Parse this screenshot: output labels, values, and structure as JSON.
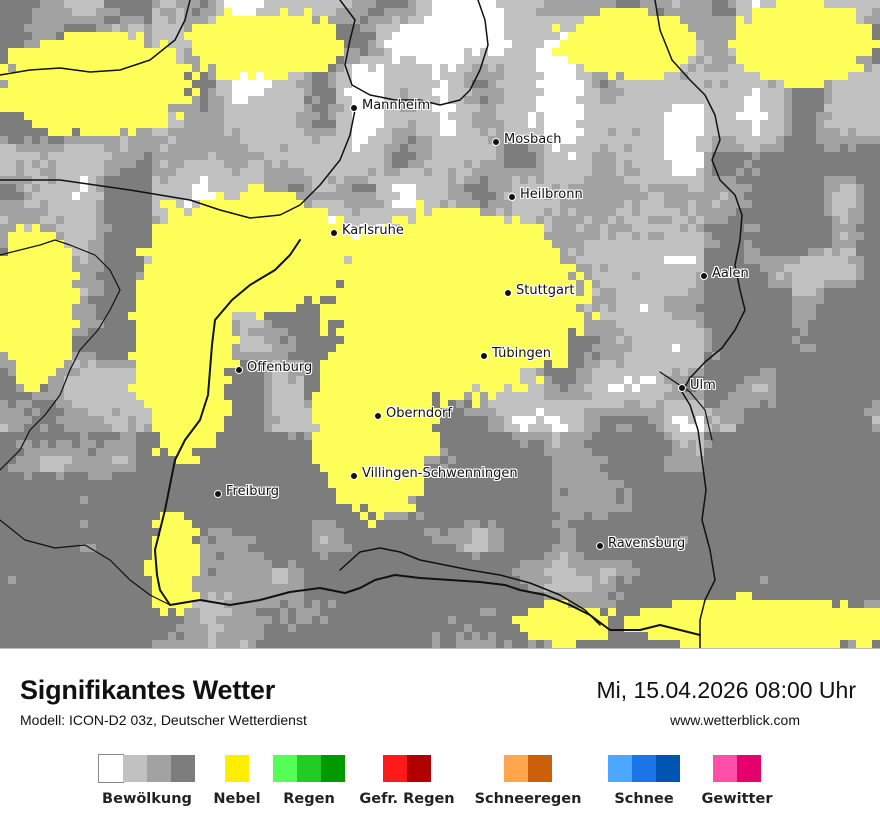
{
  "map": {
    "colors": {
      "background": "#7d7d7d",
      "cloud_light": "#c1c1c1",
      "cloud_mid": "#a2a2a2",
      "cloud_dark": "#7d7d7d",
      "clear": "#ffffff",
      "fog": "#ffff5a",
      "border": "#111111"
    },
    "cities": [
      {
        "name": "Mannheim"
      },
      {
        "name": "Mosbach"
      },
      {
        "name": "Heilbronn"
      },
      {
        "name": "Karlsruhe"
      },
      {
        "name": "Aalen"
      },
      {
        "name": "Stuttgart"
      },
      {
        "name": "Tübingen"
      },
      {
        "name": "Offenburg"
      },
      {
        "name": "Ulm"
      },
      {
        "name": "Oberndorf"
      },
      {
        "name": "Villingen-Schwenningen"
      },
      {
        "name": "Freiburg"
      },
      {
        "name": "Ravensburg"
      }
    ]
  },
  "footer": {
    "title": "Signifikantes Wetter",
    "model": "Modell: ICON-D2 03z, Deutscher Wetterdienst",
    "datetime": "Mi, 15.04.2026 08:00 Uhr",
    "website": "www.wetterblick.com"
  },
  "legend": [
    {
      "label": "Bewölkung",
      "colors": [
        "#ffffff",
        "#c1c1c1",
        "#a2a2a2",
        "#7d7d7d"
      ]
    },
    {
      "label": "Nebel",
      "colors": [
        "#ffee00"
      ]
    },
    {
      "label": "Regen",
      "colors": [
        "#55ff55",
        "#22cc22",
        "#009900"
      ]
    },
    {
      "label": "Gefr. Regen",
      "colors": [
        "#ff1a1a",
        "#b00000"
      ]
    },
    {
      "label": "Schneeregen",
      "colors": [
        "#ffa64d",
        "#cc5f0a"
      ]
    },
    {
      "label": "Schnee",
      "colors": [
        "#4da6ff",
        "#1a75e6",
        "#0055b3"
      ]
    },
    {
      "label": "Gewitter",
      "colors": [
        "#ff4fa8",
        "#e6006e"
      ]
    }
  ]
}
